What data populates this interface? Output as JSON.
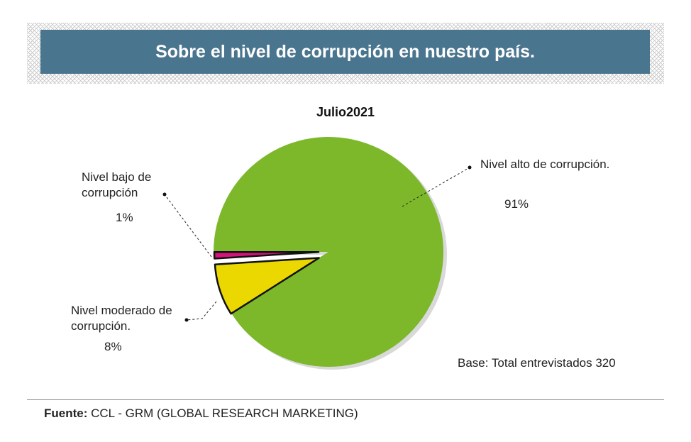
{
  "chart_data": {
    "type": "pie",
    "title": "Sobre el nivel de corrupción en nuestro país.",
    "subtitle": "Julio2021",
    "slices": [
      {
        "label": "Nivel alto de corrupción.",
        "value": 91,
        "value_label": "91%",
        "color": "#7cb82a"
      },
      {
        "label": "Nivel moderado de corrupción.",
        "value": 8,
        "value_label": "8%",
        "color": "#ead800"
      },
      {
        "label": "Nivel bajo de corrupción",
        "value": 1,
        "value_label": "1%",
        "color": "#d6137a"
      }
    ],
    "note": "Base: Total entrevistados 320"
  },
  "source": {
    "label": "Fuente:",
    "text": "CCL - GRM (GLOBAL RESEARCH MARKETING)"
  }
}
